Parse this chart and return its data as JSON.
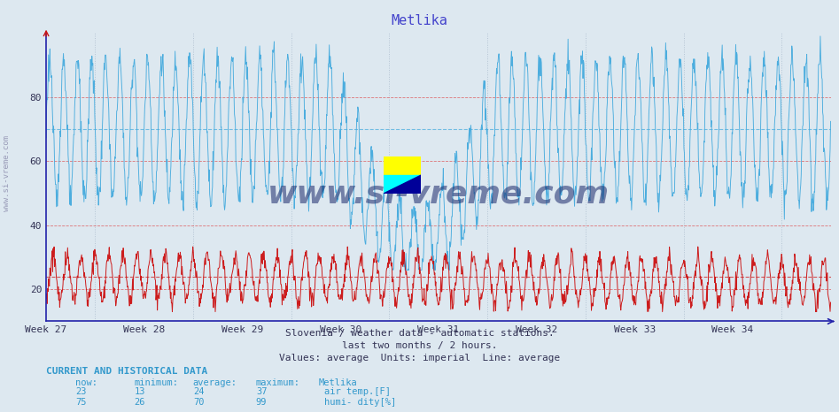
{
  "title": "Metlika",
  "title_color": "#4444cc",
  "bg_color": "#dde8f0",
  "plot_bg_color": "#dde8f0",
  "weeks": [
    "Week 27",
    "Week 28",
    "Week 29",
    "Week 30",
    "Week 31",
    "Week 32",
    "Week 33",
    "Week 34"
  ],
  "ylim": [
    10,
    100
  ],
  "yticks": [
    20,
    40,
    60,
    80
  ],
  "grid_h_color": "#dd4444",
  "grid_v_color": "#aabbcc",
  "avg_line_temp": 24,
  "avg_line_humi": 70,
  "temp_color": "#cc1111",
  "humi_color": "#44aadd",
  "subtitle1": "Slovenia / weather data - automatic stations.",
  "subtitle2": "last two months / 2 hours.",
  "subtitle3": "Values: average  Units: imperial  Line: average",
  "footer_title": "CURRENT AND HISTORICAL DATA",
  "row1": [
    "23",
    "13",
    "24",
    "37",
    "air temp.[F]"
  ],
  "row2": [
    "75",
    "26",
    "70",
    "99",
    "humi- dity[%]"
  ],
  "watermark": "www.si-vreme.com",
  "watermark_color": "#1a2a6c",
  "n_points": 1680,
  "n_weeks": 8,
  "humi_base": 70,
  "humi_amplitude": 22,
  "humi_min_clip": 26,
  "humi_max_clip": 99,
  "temp_base": 24,
  "temp_amplitude": 7,
  "temp_min_clip": 13,
  "temp_max_clip": 37,
  "cycles_per_week": 3.5
}
